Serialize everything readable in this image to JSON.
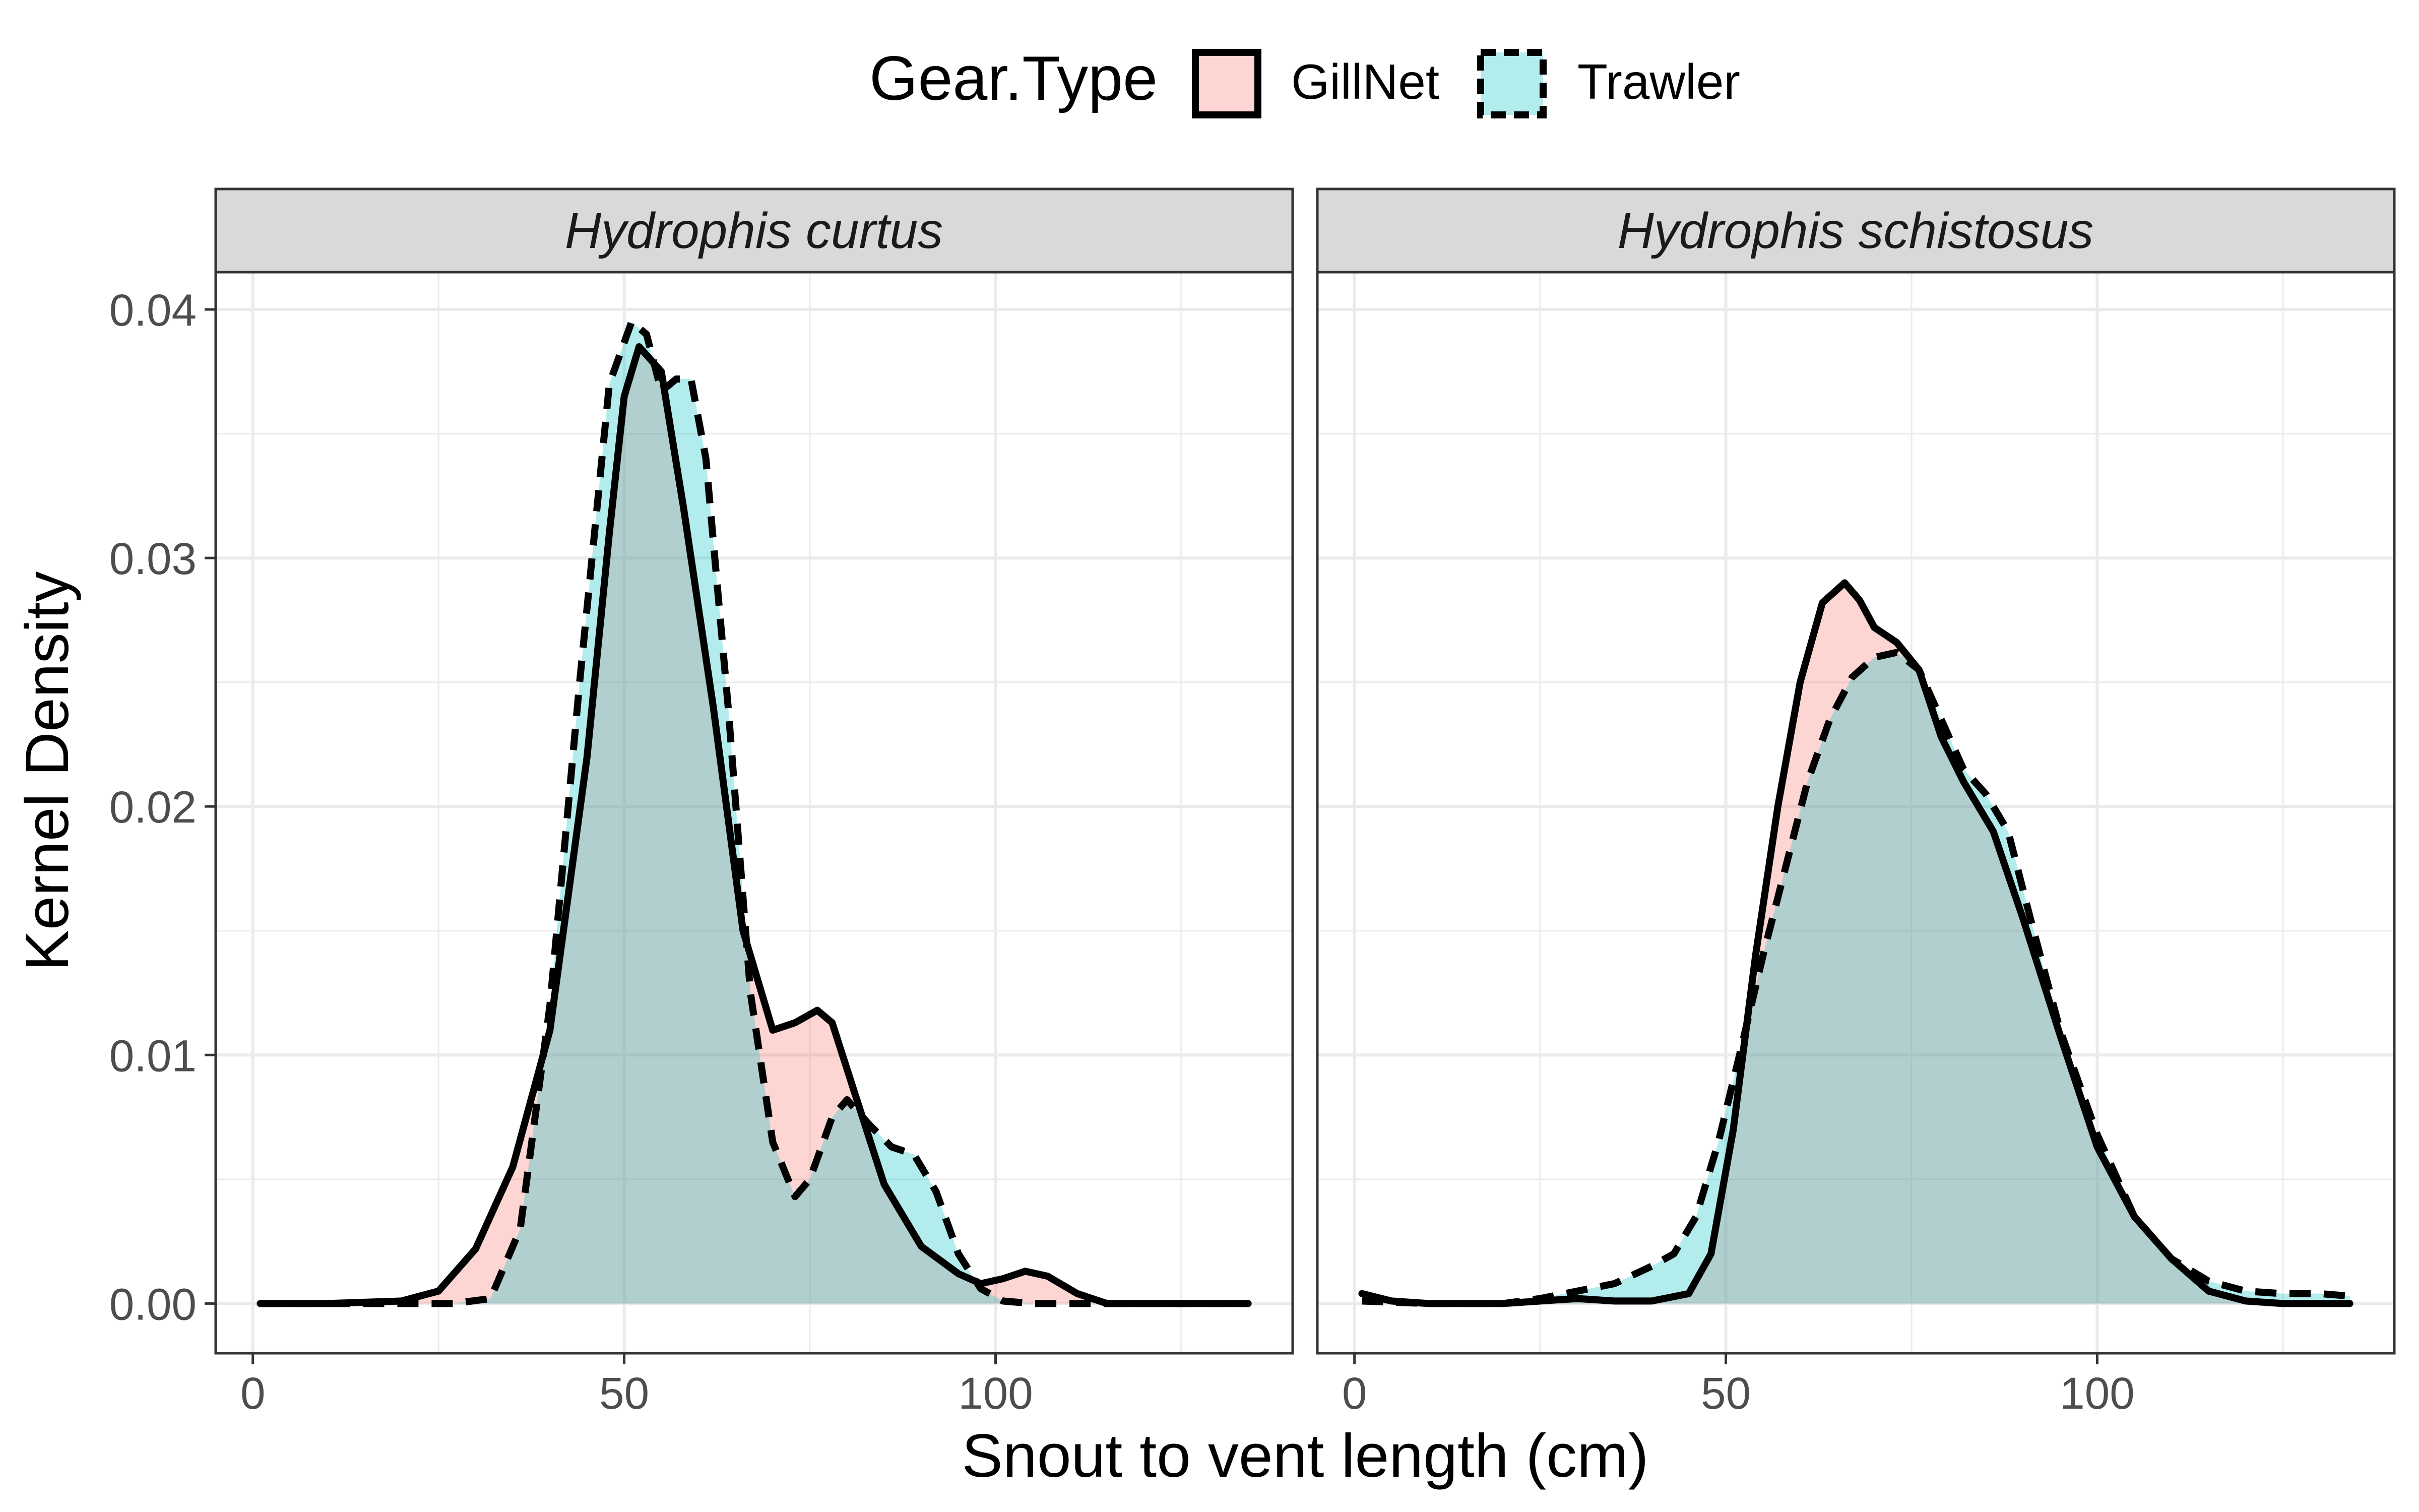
{
  "chart_data": {
    "type": "area",
    "subtype": "kernel-density",
    "xlabel": "Snout to vent length (cm)",
    "ylabel": "Kernel Density",
    "xlim": [
      -5,
      140
    ],
    "ylim": [
      -0.002,
      0.0415
    ],
    "x_ticks": [
      0,
      50,
      100
    ],
    "x_tick_labels": [
      "0",
      "50",
      "100"
    ],
    "y_ticks": [
      0.0,
      0.01,
      0.02,
      0.03,
      0.04
    ],
    "y_tick_labels": [
      "0.00",
      "0.01",
      "0.02",
      "0.03",
      "0.04"
    ],
    "legend": {
      "title": "Gear.Type",
      "position": "top",
      "entries": [
        {
          "name": "GillNet",
          "fill": "#F8766D",
          "line": "solid"
        },
        {
          "name": "Trawler",
          "fill": "#00BFC4",
          "line": "dashed"
        }
      ]
    },
    "colors": {
      "GillNet": "#F8766D",
      "Trawler": "#00BFC4",
      "strip_bg": "#D9D9D9",
      "grid": "#EBEBEB"
    },
    "grid": true,
    "panels": [
      {
        "title": "Hydrophis curtus",
        "series": [
          {
            "name": "GillNet",
            "points": [
              [
                1,
                0
              ],
              [
                10,
                0
              ],
              [
                20,
                0.0001
              ],
              [
                25,
                0.0005
              ],
              [
                30,
                0.0022
              ],
              [
                35,
                0.0055
              ],
              [
                40,
                0.011
              ],
              [
                45,
                0.022
              ],
              [
                48,
                0.031
              ],
              [
                50,
                0.0365
              ],
              [
                52,
                0.0385
              ],
              [
                55,
                0.0375
              ],
              [
                58,
                0.032
              ],
              [
                62,
                0.024
              ],
              [
                66,
                0.015
              ],
              [
                70,
                0.011
              ],
              [
                73,
                0.0113
              ],
              [
                76,
                0.0118
              ],
              [
                78,
                0.0113
              ],
              [
                81,
                0.0085
              ],
              [
                85,
                0.0048
              ],
              [
                90,
                0.0023
              ],
              [
                95,
                0.0012
              ],
              [
                98,
                0.0008
              ],
              [
                101,
                0.001
              ],
              [
                104,
                0.0013
              ],
              [
                107,
                0.0011
              ],
              [
                111,
                0.0004
              ],
              [
                115,
                0
              ],
              [
                134,
                0
              ]
            ]
          },
          {
            "name": "Trawler",
            "points": [
              [
                1,
                0
              ],
              [
                20,
                0
              ],
              [
                27,
                0
              ],
              [
                32,
                0.0002
              ],
              [
                36,
                0.003
              ],
              [
                40,
                0.012
              ],
              [
                44,
                0.025
              ],
              [
                48,
                0.037
              ],
              [
                51,
                0.0395
              ],
              [
                53,
                0.039
              ],
              [
                55,
                0.0367
              ],
              [
                57,
                0.0372
              ],
              [
                59,
                0.0372
              ],
              [
                61,
                0.034
              ],
              [
                64,
                0.024
              ],
              [
                67,
                0.0125
              ],
              [
                70,
                0.0065
              ],
              [
                73,
                0.0043
              ],
              [
                75,
                0.005
              ],
              [
                78,
                0.0075
              ],
              [
                80,
                0.0082
              ],
              [
                83,
                0.0072
              ],
              [
                86,
                0.0063
              ],
              [
                89,
                0.006
              ],
              [
                92,
                0.0045
              ],
              [
                95,
                0.002
              ],
              [
                98,
                0.0006
              ],
              [
                101,
                0.0001
              ],
              [
                105,
                0
              ],
              [
                110,
                0
              ],
              [
                134,
                0
              ]
            ]
          }
        ]
      },
      {
        "title": "Hydrophis schistosus",
        "series": [
          {
            "name": "GillNet",
            "points": [
              [
                1,
                0.0004
              ],
              [
                5,
                0.0001
              ],
              [
                10,
                0
              ],
              [
                20,
                0
              ],
              [
                25,
                0.0001
              ],
              [
                30,
                0.0002
              ],
              [
                35,
                0.0001
              ],
              [
                40,
                0.0001
              ],
              [
                45,
                0.0004
              ],
              [
                48,
                0.002
              ],
              [
                51,
                0.007
              ],
              [
                54,
                0.014
              ],
              [
                57,
                0.02
              ],
              [
                60,
                0.025
              ],
              [
                63,
                0.0282
              ],
              [
                66,
                0.029
              ],
              [
                68,
                0.0283
              ],
              [
                70,
                0.0272
              ],
              [
                73,
                0.0266
              ],
              [
                76,
                0.0255
              ],
              [
                79,
                0.0228
              ],
              [
                82,
                0.021
              ],
              [
                86,
                0.019
              ],
              [
                90,
                0.0155
              ],
              [
                95,
                0.0108
              ],
              [
                100,
                0.0063
              ],
              [
                105,
                0.0035
              ],
              [
                110,
                0.0018
              ],
              [
                115,
                0.0005
              ],
              [
                120,
                0.0001
              ],
              [
                125,
                0
              ],
              [
                134,
                0
              ]
            ]
          },
          {
            "name": "Trawler",
            "points": [
              [
                1,
                0.0001
              ],
              [
                10,
                0
              ],
              [
                20,
                0
              ],
              [
                25,
                0.0002
              ],
              [
                30,
                0.0005
              ],
              [
                35,
                0.0008
              ],
              [
                40,
                0.0015
              ],
              [
                43,
                0.002
              ],
              [
                46,
                0.0035
              ],
              [
                49,
                0.0065
              ],
              [
                52,
                0.0102
              ],
              [
                55,
                0.014
              ],
              [
                58,
                0.0175
              ],
              [
                61,
                0.021
              ],
              [
                64,
                0.0235
              ],
              [
                67,
                0.0252
              ],
              [
                70,
                0.026
              ],
              [
                73,
                0.0262
              ],
              [
                76,
                0.0255
              ],
              [
                79,
                0.0235
              ],
              [
                82,
                0.0215
              ],
              [
                85,
                0.0205
              ],
              [
                88,
                0.019
              ],
              [
                91,
                0.0155
              ],
              [
                95,
                0.011
              ],
              [
                100,
                0.0068
              ],
              [
                105,
                0.0035
              ],
              [
                110,
                0.0018
              ],
              [
                115,
                0.0009
              ],
              [
                120,
                0.0005
              ],
              [
                125,
                0.0004
              ],
              [
                130,
                0.0004
              ],
              [
                134,
                0.0003
              ]
            ]
          }
        ]
      }
    ]
  }
}
